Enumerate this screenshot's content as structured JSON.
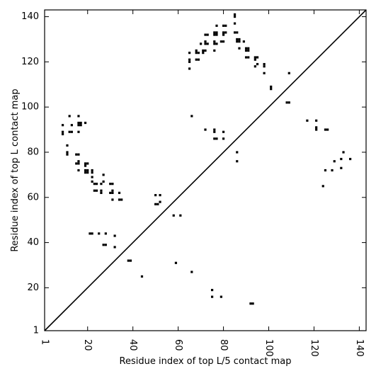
{
  "chart_data": {
    "type": "scatter",
    "xlabel": "Residue index of top L/5 contact map",
    "ylabel": "Residue index of top L contact map",
    "xlim": [
      1,
      143
    ],
    "ylim": [
      1,
      143
    ],
    "xticks": [
      1,
      20,
      40,
      60,
      80,
      100,
      120,
      140
    ],
    "yticks": [
      1,
      20,
      40,
      60,
      80,
      100,
      120,
      140
    ],
    "x_tick_labels": [
      "1",
      "20",
      "40",
      "60",
      "80",
      "100",
      "120",
      "140"
    ],
    "y_tick_labels": [
      "1",
      "20",
      "40",
      "60",
      "80",
      "100",
      "120",
      "140"
    ],
    "x_tick_label_rotation": "vertical",
    "grid": false,
    "diagonal": true,
    "marker": "square",
    "color": "#000000",
    "lower_triangle_points": [
      [
        21,
        44
      ],
      [
        22,
        44
      ],
      [
        25,
        44
      ],
      [
        28,
        44
      ],
      [
        27,
        39
      ],
      [
        28,
        39
      ],
      [
        32,
        38
      ],
      [
        32,
        43
      ],
      [
        38,
        32
      ],
      [
        39,
        32
      ],
      [
        44,
        25
      ],
      [
        59,
        31
      ],
      [
        66,
        27
      ],
      [
        75,
        19
      ],
      [
        75,
        16
      ],
      [
        79,
        16
      ],
      [
        92,
        13
      ],
      [
        93,
        13
      ],
      [
        50,
        57
      ],
      [
        51,
        57
      ],
      [
        52,
        58
      ],
      [
        50,
        61
      ],
      [
        52,
        61
      ],
      [
        58,
        52
      ],
      [
        61,
        52
      ],
      [
        23,
        63
      ],
      [
        24,
        63
      ],
      [
        26,
        62
      ],
      [
        26,
        63
      ],
      [
        30,
        62
      ],
      [
        31,
        62
      ],
      [
        31,
        63
      ],
      [
        34,
        62
      ],
      [
        31,
        59
      ],
      [
        34,
        59
      ],
      [
        35,
        59
      ],
      [
        23,
        66
      ],
      [
        24,
        66
      ],
      [
        26,
        66
      ],
      [
        27,
        67
      ],
      [
        30,
        66
      ],
      [
        31,
        66
      ],
      [
        22,
        67
      ],
      [
        22,
        69
      ],
      [
        22,
        71
      ],
      [
        22,
        72
      ],
      [
        27,
        70
      ],
      [
        19,
        71
      ],
      [
        20,
        71
      ],
      [
        19,
        72
      ],
      [
        20,
        72
      ],
      [
        19,
        74
      ],
      [
        19,
        75
      ],
      [
        20,
        75
      ],
      [
        15,
        75
      ],
      [
        16,
        75
      ],
      [
        16,
        76
      ],
      [
        15,
        79
      ],
      [
        16,
        79
      ],
      [
        16,
        72
      ],
      [
        11,
        79
      ],
      [
        11,
        80
      ],
      [
        11,
        83
      ],
      [
        12,
        89
      ],
      [
        13,
        89
      ],
      [
        16,
        89
      ],
      [
        9,
        88
      ],
      [
        9,
        89
      ],
      [
        9,
        92
      ],
      [
        13,
        92
      ],
      [
        16,
        92
      ],
      [
        17,
        92
      ],
      [
        16,
        93
      ],
      [
        17,
        93
      ],
      [
        19,
        93
      ],
      [
        12,
        96
      ],
      [
        16,
        96
      ],
      [
        66,
        96
      ],
      [
        72,
        90
      ],
      [
        76,
        90
      ],
      [
        76,
        89
      ],
      [
        76,
        86
      ],
      [
        77,
        86
      ],
      [
        80,
        86
      ],
      [
        80,
        89
      ],
      [
        86,
        80
      ],
      [
        86,
        76
      ],
      [
        108,
        102
      ],
      [
        109,
        102
      ],
      [
        101,
        108
      ],
      [
        101,
        109
      ],
      [
        109,
        115
      ],
      [
        117,
        94
      ],
      [
        121,
        94
      ],
      [
        121,
        91
      ],
      [
        121,
        90
      ],
      [
        125,
        90
      ],
      [
        126,
        90
      ],
      [
        125,
        72
      ],
      [
        128,
        72
      ],
      [
        129,
        76
      ],
      [
        132,
        77
      ],
      [
        133,
        80
      ],
      [
        136,
        77
      ],
      [
        132,
        73
      ],
      [
        124,
        65
      ]
    ],
    "upper_triangle_points": [
      [
        65,
        117
      ],
      [
        65,
        120
      ],
      [
        65,
        121
      ],
      [
        65,
        124
      ],
      [
        68,
        121
      ],
      [
        69,
        121
      ],
      [
        68,
        124
      ],
      [
        69,
        124
      ],
      [
        68,
        125
      ],
      [
        71,
        124
      ],
      [
        71,
        125
      ],
      [
        72,
        125
      ],
      [
        70,
        128
      ],
      [
        72,
        128
      ],
      [
        73,
        128
      ],
      [
        72,
        129
      ],
      [
        72,
        132
      ],
      [
        73,
        132
      ],
      [
        76,
        125
      ],
      [
        76,
        128
      ],
      [
        77,
        128
      ],
      [
        76,
        129
      ],
      [
        76,
        132
      ],
      [
        77,
        132
      ],
      [
        76,
        133
      ],
      [
        77,
        133
      ],
      [
        77,
        136
      ],
      [
        79,
        129
      ],
      [
        80,
        129
      ],
      [
        80,
        132
      ],
      [
        80,
        133
      ],
      [
        81,
        133
      ],
      [
        80,
        136
      ],
      [
        81,
        136
      ],
      [
        85,
        133
      ],
      [
        86,
        133
      ],
      [
        85,
        137
      ],
      [
        85,
        140
      ],
      [
        85,
        141
      ],
      [
        86,
        130
      ],
      [
        87,
        130
      ],
      [
        86,
        129
      ],
      [
        87,
        129
      ],
      [
        87,
        126
      ],
      [
        89,
        129
      ],
      [
        90,
        126
      ],
      [
        91,
        126
      ],
      [
        90,
        125
      ],
      [
        91,
        125
      ],
      [
        90,
        122
      ],
      [
        91,
        122
      ],
      [
        94,
        122
      ],
      [
        95,
        122
      ],
      [
        94,
        121
      ],
      [
        94,
        118
      ],
      [
        95,
        119
      ],
      [
        98,
        118
      ],
      [
        98,
        119
      ],
      [
        98,
        115
      ]
    ]
  }
}
